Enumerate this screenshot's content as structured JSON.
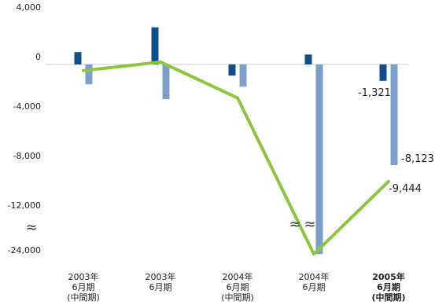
{
  "chart_data": {
    "type": "bar",
    "categories": [
      [
        "2003年",
        "6月期",
        "(中間期)"
      ],
      [
        "2003年",
        "6月期"
      ],
      [
        "2004年",
        "6月期",
        "(中間期)"
      ],
      [
        "2004年",
        "6月期"
      ],
      [
        "2005年",
        "6月期",
        "(中間期)"
      ]
    ],
    "highlight_category_index": 4,
    "y_ticks": [
      "4,000",
      "0",
      "-4,000",
      "-8,000",
      "-12,000",
      "-24,000"
    ],
    "y_tick_values": [
      4000,
      0,
      -4000,
      -8000,
      -12000,
      -24000
    ],
    "axis_break": {
      "symbol": "≈",
      "between": [
        -12000,
        -24000
      ]
    },
    "ylim": [
      -24000,
      4000
    ],
    "series": [
      {
        "type": "bar",
        "color": "#0d4f8b",
        "values": [
          1000,
          3000,
          -900,
          800,
          -1321
        ]
      },
      {
        "type": "bar",
        "color": "#7da0cb",
        "values": [
          -1600,
          -2800,
          -1800,
          -23000,
          -8123
        ]
      },
      {
        "type": "line",
        "color": "#8cc63f",
        "values": [
          -500,
          200,
          -2700,
          -23000,
          -9444
        ]
      }
    ],
    "data_labels": [
      {
        "series": 0,
        "index": 4,
        "text": "-1,321"
      },
      {
        "series": 1,
        "index": 4,
        "text": "-8,123"
      },
      {
        "series": 2,
        "index": 4,
        "text": "-9,444"
      }
    ],
    "grid": false,
    "legend": "none",
    "title": "",
    "xlabel": "",
    "ylabel": ""
  }
}
